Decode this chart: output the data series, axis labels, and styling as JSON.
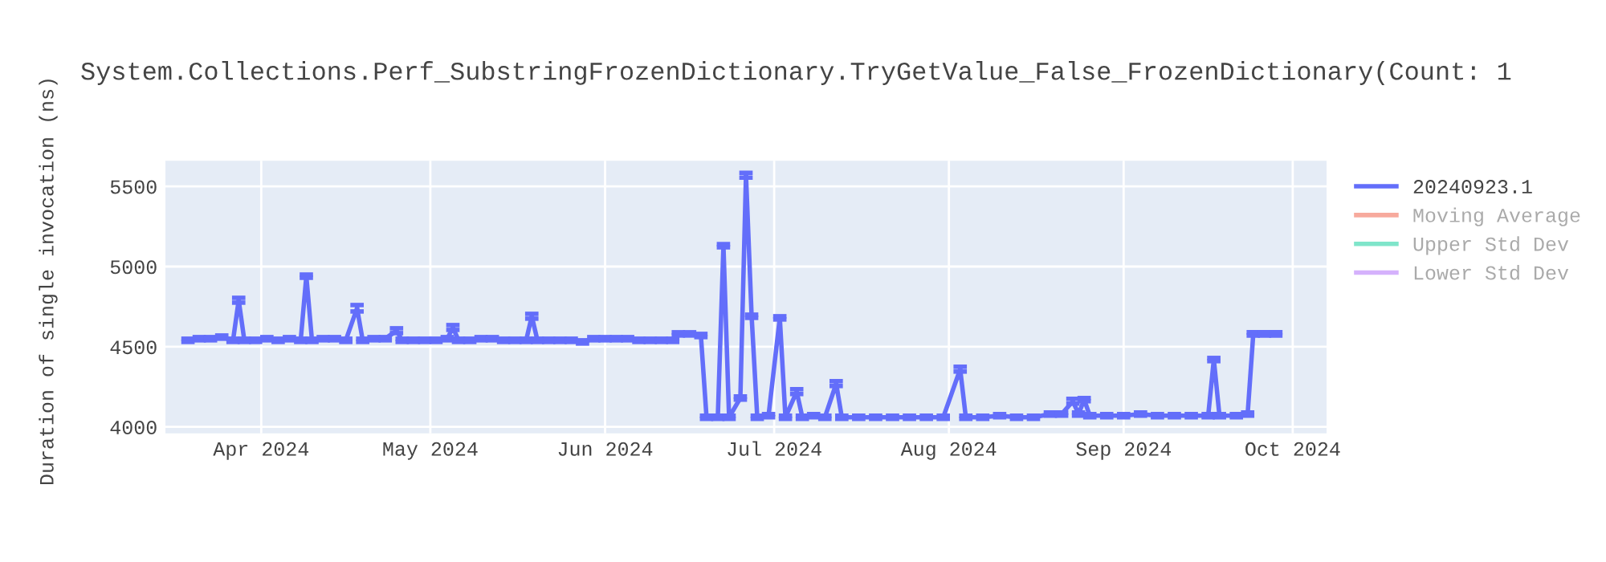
{
  "chart_data": {
    "type": "line",
    "title": "System.Collections.Perf_SubstringFrozenDictionary.TryGetValue_False_FrozenDictionary(Count: 1",
    "ylabel": "Duration of single invocation (ns)",
    "x": [
      "2024-03-19",
      "2024-03-21",
      "2024-03-23",
      "2024-03-25",
      "2024-03-27",
      "2024-03-28",
      "2024-03-29",
      "2024-03-31",
      "2024-04-02",
      "2024-04-04",
      "2024-04-06",
      "2024-04-08",
      "2024-04-09",
      "2024-04-10",
      "2024-04-12",
      "2024-04-14",
      "2024-04-16",
      "2024-04-18",
      "2024-04-19",
      "2024-04-21",
      "2024-04-23",
      "2024-04-25",
      "2024-04-26",
      "2024-04-28",
      "2024-04-30",
      "2024-05-02",
      "2024-05-04",
      "2024-05-05",
      "2024-05-06",
      "2024-05-08",
      "2024-05-10",
      "2024-05-12",
      "2024-05-14",
      "2024-05-16",
      "2024-05-18",
      "2024-05-19",
      "2024-05-20",
      "2024-05-22",
      "2024-05-24",
      "2024-05-26",
      "2024-05-28",
      "2024-05-30",
      "2024-06-01",
      "2024-06-03",
      "2024-06-05",
      "2024-06-07",
      "2024-06-09",
      "2024-06-11",
      "2024-06-13",
      "2024-06-14",
      "2024-06-16",
      "2024-06-18",
      "2024-06-19",
      "2024-06-21",
      "2024-06-22",
      "2024-06-23",
      "2024-06-25",
      "2024-06-26",
      "2024-06-27",
      "2024-06-28",
      "2024-06-30",
      "2024-07-02",
      "2024-07-03",
      "2024-07-05",
      "2024-07-06",
      "2024-07-08",
      "2024-07-10",
      "2024-07-12",
      "2024-07-13",
      "2024-07-16",
      "2024-07-19",
      "2024-07-22",
      "2024-07-25",
      "2024-07-28",
      "2024-07-31",
      "2024-08-03",
      "2024-08-04",
      "2024-08-07",
      "2024-08-10",
      "2024-08-13",
      "2024-08-16",
      "2024-08-19",
      "2024-08-21",
      "2024-08-23",
      "2024-08-24",
      "2024-08-25",
      "2024-08-26",
      "2024-08-29",
      "2024-09-01",
      "2024-09-04",
      "2024-09-07",
      "2024-09-10",
      "2024-09-13",
      "2024-09-16",
      "2024-09-17",
      "2024-09-18",
      "2024-09-21",
      "2024-09-23",
      "2024-09-24",
      "2024-09-26",
      "2024-09-28"
    ],
    "series": [
      {
        "name": "20240923.1",
        "color": "#636efa",
        "values": [
          4540,
          4550,
          4550,
          4560,
          4540,
          4790,
          4540,
          4540,
          4550,
          4540,
          4550,
          4540,
          4940,
          4540,
          4550,
          4550,
          4540,
          4740,
          4540,
          4550,
          4550,
          4600,
          4540,
          4540,
          4540,
          4540,
          4550,
          4620,
          4540,
          4540,
          4550,
          4550,
          4540,
          4540,
          4540,
          4690,
          4540,
          4540,
          4540,
          4540,
          4530,
          4550,
          4550,
          4550,
          4550,
          4540,
          4540,
          4540,
          4540,
          4580,
          4580,
          4570,
          4060,
          4060,
          5130,
          4060,
          4180,
          5570,
          4690,
          4060,
          4070,
          4680,
          4060,
          4220,
          4060,
          4070,
          4060,
          4270,
          4060,
          4060,
          4060,
          4060,
          4060,
          4060,
          4060,
          4360,
          4060,
          4060,
          4070,
          4060,
          4060,
          4080,
          4080,
          4160,
          4080,
          4170,
          4070,
          4070,
          4070,
          4080,
          4070,
          4070,
          4070,
          4070,
          4420,
          4070,
          4070,
          4080,
          4580,
          4580,
          4580
        ],
        "errors": [
          10,
          10,
          10,
          10,
          10,
          15,
          10,
          10,
          10,
          10,
          10,
          10,
          10,
          10,
          10,
          10,
          10,
          20,
          10,
          10,
          10,
          15,
          10,
          10,
          10,
          10,
          10,
          15,
          10,
          10,
          10,
          10,
          10,
          10,
          10,
          15,
          10,
          10,
          10,
          10,
          10,
          10,
          10,
          10,
          10,
          10,
          10,
          10,
          10,
          10,
          10,
          10,
          10,
          10,
          10,
          10,
          10,
          15,
          10,
          10,
          10,
          10,
          10,
          15,
          10,
          10,
          10,
          15,
          10,
          10,
          10,
          10,
          10,
          10,
          10,
          15,
          10,
          10,
          10,
          10,
          10,
          10,
          10,
          15,
          10,
          10,
          10,
          10,
          10,
          10,
          10,
          10,
          10,
          10,
          10,
          10,
          10,
          10,
          10,
          10,
          10
        ]
      },
      {
        "name": "Moving Average",
        "color": "#ef553b",
        "values": [
          null,
          null,
          null,
          null,
          null,
          null,
          null,
          null,
          null,
          null,
          null,
          null,
          null,
          null,
          null,
          null,
          null,
          null,
          null,
          null,
          null,
          null,
          null,
          null,
          null,
          null,
          null,
          null,
          null,
          null,
          null,
          null,
          null,
          null,
          null,
          null,
          null,
          null,
          null,
          null,
          null,
          null,
          null,
          null,
          null,
          null,
          null,
          null,
          null,
          null,
          null,
          null,
          null,
          null,
          null,
          null,
          null,
          null,
          null,
          null,
          null,
          null,
          null,
          null,
          null,
          null,
          null,
          null,
          null,
          null,
          null,
          null,
          null,
          null,
          null,
          null,
          null,
          null,
          null,
          null,
          null,
          null,
          null,
          null,
          null,
          null,
          null,
          null,
          null,
          null,
          null,
          null,
          null,
          null,
          null,
          null,
          null,
          null,
          null,
          null,
          null
        ]
      },
      {
        "name": "Upper Std Dev",
        "color": "#00cc96",
        "values": [
          null,
          null,
          null,
          null,
          null,
          null,
          null,
          null,
          null,
          null,
          null,
          null,
          null,
          null,
          null,
          null,
          null,
          null,
          null,
          null,
          null,
          null,
          null,
          null,
          null,
          null,
          null,
          null,
          null,
          null,
          null,
          null,
          null,
          null,
          null,
          null,
          null,
          null,
          null,
          null,
          null,
          null,
          null,
          null,
          null,
          null,
          null,
          null,
          null,
          null,
          null,
          null,
          null,
          null,
          null,
          null,
          null,
          null,
          null,
          null,
          null,
          null,
          null,
          null,
          null,
          null,
          null,
          null,
          null,
          null,
          null,
          null,
          null,
          null,
          null,
          null,
          null,
          null,
          null,
          null,
          null,
          null,
          null,
          null,
          null,
          null,
          null,
          null,
          null,
          null,
          null,
          null,
          null,
          null,
          null,
          null,
          null,
          null,
          null,
          null,
          null
        ]
      },
      {
        "name": "Lower Std Dev",
        "color": "#ab63fa",
        "values": [
          null,
          null,
          null,
          null,
          null,
          null,
          null,
          null,
          null,
          null,
          null,
          null,
          null,
          null,
          null,
          null,
          null,
          null,
          null,
          null,
          null,
          null,
          null,
          null,
          null,
          null,
          null,
          null,
          null,
          null,
          null,
          null,
          null,
          null,
          null,
          null,
          null,
          null,
          null,
          null,
          null,
          null,
          null,
          null,
          null,
          null,
          null,
          null,
          null,
          null,
          null,
          null,
          null,
          null,
          null,
          null,
          null,
          null,
          null,
          null,
          null,
          null,
          null,
          null,
          null,
          null,
          null,
          null,
          null,
          null,
          null,
          null,
          null,
          null,
          null,
          null,
          null,
          null,
          null,
          null,
          null,
          null,
          null,
          null,
          null,
          null,
          null,
          null,
          null,
          null,
          null,
          null,
          null,
          null,
          null,
          null,
          null,
          null,
          null,
          null,
          null
        ]
      }
    ],
    "xlim": [
      "2024-03-15",
      "2024-10-07"
    ],
    "xticks": [
      {
        "value": "2024-04-01",
        "label": "Apr 2024"
      },
      {
        "value": "2024-05-01",
        "label": "May 2024"
      },
      {
        "value": "2024-06-01",
        "label": "Jun 2024"
      },
      {
        "value": "2024-07-01",
        "label": "Jul 2024"
      },
      {
        "value": "2024-08-01",
        "label": "Aug 2024"
      },
      {
        "value": "2024-09-01",
        "label": "Sep 2024"
      },
      {
        "value": "2024-10-01",
        "label": "Oct 2024"
      }
    ],
    "ylim": [
      3960,
      5660
    ],
    "yticks": [
      4000,
      4500,
      5000,
      5500
    ],
    "grid": true,
    "legend": "top right",
    "marker": "none",
    "line_style": "solid"
  }
}
